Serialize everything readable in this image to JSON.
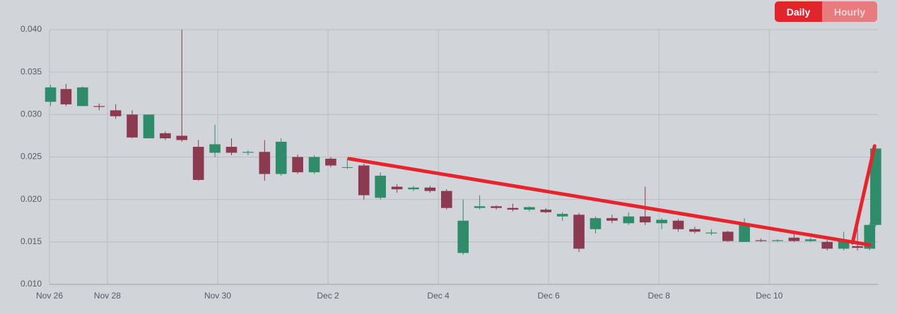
{
  "buttons": {
    "daily": "Daily",
    "hourly": "Hourly"
  },
  "chart_data": {
    "type": "candlestick",
    "x": [
      0.97,
      1.25,
      1.55,
      1.85,
      2.15,
      2.45,
      2.75,
      3.05,
      3.35,
      3.65,
      3.95,
      4.25,
      4.55,
      4.85,
      5.15,
      5.45,
      5.75,
      6.05,
      6.35,
      6.65,
      6.95,
      7.25,
      7.55,
      7.85,
      8.15,
      8.45,
      8.75,
      9.05,
      9.35,
      9.65,
      9.95,
      10.25,
      10.55,
      10.85,
      11.15,
      11.45,
      11.75,
      12.05,
      12.35,
      12.65,
      12.95,
      13.25,
      13.55,
      13.85,
      14.15,
      14.45,
      14.75,
      15.05,
      15.35,
      15.6,
      15.82,
      15.93
    ],
    "open": [
      0.0315,
      0.033,
      0.031,
      0.031,
      0.0305,
      0.03,
      0.0272,
      0.0278,
      0.0275,
      0.0262,
      0.0255,
      0.0262,
      0.0255,
      0.0256,
      0.023,
      0.025,
      0.0232,
      0.0248,
      0.0238,
      0.024,
      0.0202,
      0.0215,
      0.0212,
      0.0214,
      0.021,
      0.0137,
      0.019,
      0.0192,
      0.019,
      0.0188,
      0.0188,
      0.018,
      0.0182,
      0.0165,
      0.0178,
      0.0172,
      0.018,
      0.0172,
      0.0175,
      0.0165,
      0.016,
      0.0162,
      0.015,
      0.0152,
      0.0151,
      0.0155,
      0.0151,
      0.015,
      0.0142,
      0.0145,
      0.0142,
      0.017
    ],
    "high": [
      0.0335,
      0.0336,
      0.0333,
      0.0313,
      0.0312,
      0.0305,
      0.03,
      0.028,
      0.04,
      0.027,
      0.0288,
      0.0272,
      0.0258,
      0.027,
      0.0272,
      0.0253,
      0.0252,
      0.025,
      0.0248,
      0.0242,
      0.0232,
      0.0218,
      0.0216,
      0.0216,
      0.0212,
      0.02,
      0.0205,
      0.0193,
      0.0195,
      0.0192,
      0.019,
      0.0185,
      0.0184,
      0.018,
      0.0182,
      0.0185,
      0.0215,
      0.0178,
      0.0177,
      0.0168,
      0.0165,
      0.0163,
      0.0178,
      0.0154,
      0.0153,
      0.016,
      0.0155,
      0.0152,
      0.0162,
      0.018,
      0.0172,
      0.0262
    ],
    "low": [
      0.031,
      0.031,
      0.031,
      0.0305,
      0.0295,
      0.0272,
      0.0272,
      0.027,
      0.0268,
      0.0222,
      0.025,
      0.0252,
      0.0252,
      0.0222,
      0.0228,
      0.023,
      0.023,
      0.0238,
      0.0236,
      0.02,
      0.02,
      0.0208,
      0.021,
      0.0208,
      0.0188,
      0.0135,
      0.0188,
      0.0188,
      0.0186,
      0.0186,
      0.0184,
      0.0175,
      0.0138,
      0.016,
      0.0172,
      0.017,
      0.017,
      0.0165,
      0.0162,
      0.016,
      0.0158,
      0.015,
      0.015,
      0.015,
      0.015,
      0.015,
      0.015,
      0.014,
      0.014,
      0.014,
      0.014,
      0.0168
    ],
    "close": [
      0.0332,
      0.0312,
      0.0332,
      0.0309,
      0.0298,
      0.0273,
      0.03,
      0.0272,
      0.027,
      0.0223,
      0.0265,
      0.0255,
      0.0256,
      0.023,
      0.0268,
      0.0232,
      0.025,
      0.024,
      0.0238,
      0.0205,
      0.0228,
      0.0212,
      0.0214,
      0.021,
      0.019,
      0.0175,
      0.0192,
      0.019,
      0.0188,
      0.0191,
      0.0185,
      0.0183,
      0.0142,
      0.0178,
      0.0175,
      0.018,
      0.0173,
      0.0176,
      0.0165,
      0.0162,
      0.0161,
      0.0151,
      0.0172,
      0.0151,
      0.0152,
      0.0151,
      0.0153,
      0.0142,
      0.0152,
      0.0143,
      0.017,
      0.026
    ],
    "up_color": "#2f8c6b",
    "down_color": "#8c3a4f",
    "xlim": [
      0.95,
      15.97
    ],
    "ylim": [
      0.01,
      0.04
    ],
    "xticks": [
      {
        "value": 0.95,
        "label": "Nov 26"
      },
      {
        "value": 2,
        "label": "Nov 28"
      },
      {
        "value": 4,
        "label": "Nov 30"
      },
      {
        "value": 6,
        "label": "Dec 2"
      },
      {
        "value": 8,
        "label": "Dec 4"
      },
      {
        "value": 10,
        "label": "Dec 6"
      },
      {
        "value": 12,
        "label": "Dec 8"
      },
      {
        "value": 14,
        "label": "Dec 10"
      }
    ],
    "yticks": [
      {
        "value": 0.01,
        "label": "0.010"
      },
      {
        "value": 0.015,
        "label": "0.015"
      },
      {
        "value": 0.02,
        "label": "0.020"
      },
      {
        "value": 0.025,
        "label": "0.025"
      },
      {
        "value": 0.03,
        "label": "0.030"
      },
      {
        "value": 0.035,
        "label": "0.035"
      },
      {
        "value": 0.04,
        "label": "0.040"
      }
    ],
    "grid": true,
    "trendlines": [
      {
        "color": "#e8232b",
        "x": [
          6.38,
          15.82
        ],
        "y": [
          0.0248,
          0.01465
        ]
      },
      {
        "color": "#e8232b",
        "x": [
          15.51,
          15.91
        ],
        "y": [
          0.0149,
          0.0263
        ]
      }
    ]
  }
}
